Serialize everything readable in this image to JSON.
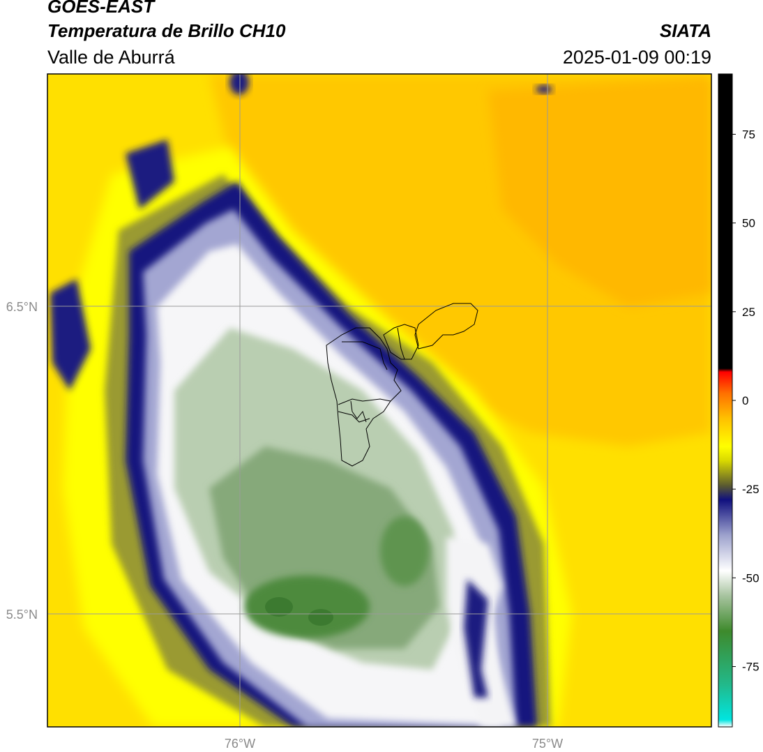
{
  "header": {
    "satellite": "GOES-EAST",
    "product": "Temperatura de Brillo CH10",
    "region": "Valle de Aburrá",
    "agency": "SIATA",
    "datetime": "2025-01-09 00:19"
  },
  "map": {
    "lat_labels": [
      "6.5°N",
      "5.5°N"
    ],
    "lon_labels": [
      "76°W",
      "75°W"
    ],
    "label_color": "#8a8a8a",
    "grid_color": "#9a9a9a",
    "boundary_color": "#000000"
  },
  "colorbar": {
    "ticks": [
      "75",
      "50",
      "25",
      "0",
      "-25",
      "-50",
      "-75"
    ],
    "tick_values": [
      75,
      50,
      25,
      0,
      -25,
      -50,
      -75
    ],
    "range": [
      -92,
      92
    ],
    "stops": [
      {
        "v": -92,
        "c": "#ffffff"
      },
      {
        "v": -90,
        "c": "#00e5e0"
      },
      {
        "v": -80,
        "c": "#22b98a"
      },
      {
        "v": -65,
        "c": "#3e8a2c"
      },
      {
        "v": -55,
        "c": "#a8c4a0"
      },
      {
        "v": -48,
        "c": "#ffffff"
      },
      {
        "v": -38,
        "c": "#9da2cd"
      },
      {
        "v": -28,
        "c": "#10107e"
      },
      {
        "v": -24,
        "c": "#5a5a30"
      },
      {
        "v": -17,
        "c": "#d8d800"
      },
      {
        "v": -13,
        "c": "#ffff00"
      },
      {
        "v": -5,
        "c": "#ffc000"
      },
      {
        "v": 2,
        "c": "#ff7000"
      },
      {
        "v": 8,
        "c": "#ff0000"
      },
      {
        "v": 9,
        "c": "#000000"
      },
      {
        "v": 92,
        "c": "#000000"
      }
    ]
  }
}
